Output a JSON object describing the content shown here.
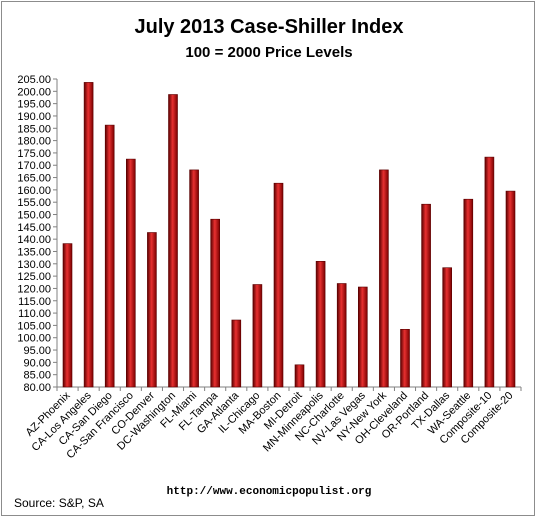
{
  "chart_data": {
    "type": "bar",
    "title": "July 2013 Case-Shiller Index",
    "subtitle": "100 = 2000 Price Levels",
    "categories": [
      "AZ-Phoenix",
      "CA-Los Angeles",
      "CA-San Diego",
      "CA-San Francisco",
      "CO-Denver",
      "DC-Washington",
      "FL-Miami",
      "FL-Tampa",
      "GA-Atlanta",
      "IL-Chicago",
      "MA-Boston",
      "MI-Detroit",
      "MN-Minneapolis",
      "NC-Charlotte",
      "NV-Las Vegas",
      "NY-New York",
      "OH-Cleveland",
      "OR-Portland",
      "TX-Dallas",
      "WA-Seattle",
      "Composite-10",
      "Composite-20"
    ],
    "values": [
      138.2,
      203.6,
      186.3,
      172.5,
      142.7,
      198.7,
      168.1,
      148.1,
      107.2,
      121.6,
      162.7,
      89.0,
      131.0,
      122.0,
      120.6,
      168.1,
      103.4,
      154.2,
      128.4,
      156.2,
      173.3,
      159.5
    ],
    "ylim": [
      80,
      205
    ],
    "yticks": [
      "80.00",
      "85.00",
      "90.00",
      "95.00",
      "100.00",
      "105.00",
      "110.00",
      "115.00",
      "120.00",
      "125.00",
      "130.00",
      "135.00",
      "140.00",
      "145.00",
      "150.00",
      "155.00",
      "160.00",
      "165.00",
      "170.00",
      "175.00",
      "180.00",
      "185.00",
      "190.00",
      "195.00",
      "200.00",
      "205.00"
    ],
    "xlabel": "",
    "ylabel": "",
    "grid": false,
    "colors": {
      "bar_dark": "#5a0000",
      "bar_mid": "#c00000",
      "bar_light": "#e83030"
    }
  },
  "footer": {
    "source": "Source:  S&P, SA",
    "url": "http://www.economicpopulist.org"
  }
}
